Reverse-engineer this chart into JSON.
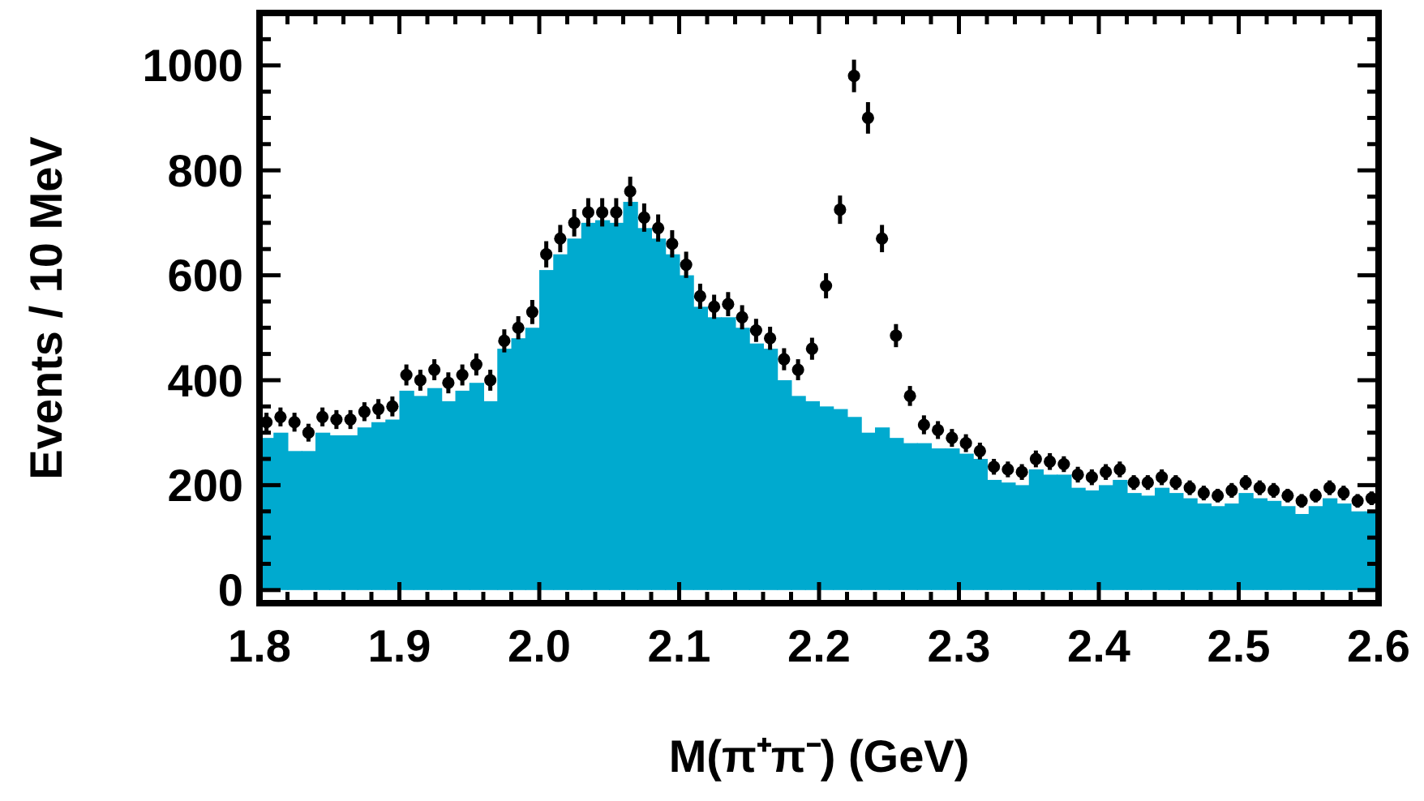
{
  "chart_data": {
    "type": "histogram",
    "xlabel": "M(π⁺π⁻) (GeV)",
    "ylabel": "Events / 10 MeV",
    "marker": "circle",
    "xlim": [
      1.8,
      2.6
    ],
    "ylim": [
      -25,
      1100
    ],
    "xticks": [
      1.8,
      {
        "value": 1.82,
        "label": null
      },
      {
        "value": 1.84,
        "label": null
      },
      {
        "value": 1.86,
        "label": null
      },
      {
        "value": 1.88,
        "label": null
      },
      1.9,
      {
        "value": 1.92,
        "label": null
      },
      {
        "value": 1.94,
        "label": null
      },
      {
        "value": 1.96,
        "label": null
      },
      {
        "value": 1.98,
        "label": null
      },
      {
        "value": 2,
        "label": "2.0"
      },
      {
        "value": 2.02,
        "label": null
      },
      {
        "value": 2.04,
        "label": null
      },
      {
        "value": 2.06,
        "label": null
      },
      {
        "value": 2.08,
        "label": null
      },
      2.1,
      {
        "value": 2.12,
        "label": null
      },
      {
        "value": 2.14,
        "label": null
      },
      {
        "value": 2.16,
        "label": null
      },
      {
        "value": 2.18,
        "label": null
      },
      2.2,
      {
        "value": 2.22,
        "label": null
      },
      {
        "value": 2.24,
        "label": null
      },
      {
        "value": 2.26,
        "label": null
      },
      {
        "value": 2.28,
        "label": null
      },
      2.3,
      {
        "value": 2.32,
        "label": null
      },
      {
        "value": 2.34,
        "label": null
      },
      {
        "value": 2.36,
        "label": null
      },
      {
        "value": 2.38,
        "label": null
      },
      2.4,
      {
        "value": 2.42,
        "label": null
      },
      {
        "value": 2.44,
        "label": null
      },
      {
        "value": 2.46,
        "label": null
      },
      {
        "value": 2.48,
        "label": null
      },
      2.5,
      {
        "value": 2.52,
        "label": null
      },
      {
        "value": 2.54,
        "label": null
      },
      {
        "value": 2.56,
        "label": null
      },
      {
        "value": 2.58,
        "label": null
      },
      2.6
    ],
    "yticks": [
      0,
      {
        "value": 50,
        "label": null
      },
      {
        "value": 100,
        "label": null
      },
      {
        "value": 150,
        "label": null
      },
      200,
      {
        "value": 250,
        "label": null
      },
      {
        "value": 300,
        "label": null
      },
      {
        "value": 350,
        "label": null
      },
      400,
      {
        "value": 450,
        "label": null
      },
      {
        "value": 500,
        "label": null
      },
      {
        "value": 550,
        "label": null
      },
      600,
      {
        "value": 650,
        "label": null
      },
      {
        "value": 700,
        "label": null
      },
      {
        "value": 750,
        "label": null
      },
      800,
      {
        "value": 850,
        "label": null
      },
      {
        "value": 900,
        "label": null
      },
      {
        "value": 950,
        "label": null
      },
      1000,
      {
        "value": 1050,
        "label": null
      }
    ],
    "bins": [
      1.8,
      1.81,
      1.82,
      1.83,
      1.84,
      1.85,
      1.86,
      1.87,
      1.88,
      1.89,
      1.9,
      1.91,
      1.92,
      1.93,
      1.94,
      1.95,
      1.96,
      1.97,
      1.98,
      1.99,
      2.0,
      2.01,
      2.02,
      2.03,
      2.04,
      2.05,
      2.06,
      2.07,
      2.08,
      2.09,
      2.1,
      2.11,
      2.12,
      2.13,
      2.14,
      2.15,
      2.16,
      2.17,
      2.18,
      2.19,
      2.2,
      2.21,
      2.22,
      2.23,
      2.24,
      2.25,
      2.26,
      2.27,
      2.28,
      2.29,
      2.3,
      2.31,
      2.32,
      2.33,
      2.34,
      2.35,
      2.36,
      2.37,
      2.38,
      2.39,
      2.4,
      2.41,
      2.42,
      2.43,
      2.44,
      2.45,
      2.46,
      2.47,
      2.48,
      2.49,
      2.5,
      2.51,
      2.52,
      2.53,
      2.54,
      2.55,
      2.56,
      2.57,
      2.58,
      2.59,
      2.6
    ],
    "series": [
      {
        "color": "#00aacf",
        "values": [
          290,
          300,
          265,
          265,
          300,
          295,
          295,
          310,
          320,
          325,
          380,
          370,
          385,
          360,
          380,
          395,
          360,
          460,
          480,
          500,
          610,
          640,
          670,
          700,
          705,
          700,
          740,
          690,
          670,
          640,
          600,
          540,
          520,
          520,
          500,
          470,
          460,
          400,
          370,
          360,
          350,
          345,
          330,
          300,
          310,
          290,
          280,
          280,
          270,
          270,
          260,
          250,
          210,
          205,
          200,
          230,
          220,
          220,
          195,
          190,
          200,
          210,
          185,
          180,
          195,
          185,
          175,
          165,
          160,
          165,
          185,
          175,
          170,
          160,
          145,
          160,
          175,
          165,
          150,
          150
        ]
      },
      {
        "type": "scatter",
        "color": "#000000",
        "x": [
          1.805,
          1.815,
          1.825,
          1.835,
          1.845,
          1.855,
          1.865,
          1.875,
          1.885,
          1.895,
          1.905,
          1.915,
          1.925,
          1.935,
          1.945,
          1.955,
          1.965,
          1.975,
          1.985,
          1.995,
          2.005,
          2.015,
          2.025,
          2.035,
          2.045,
          2.055,
          2.065,
          2.075,
          2.085,
          2.095,
          2.105,
          2.115,
          2.125,
          2.135,
          2.145,
          2.155,
          2.165,
          2.175,
          2.185,
          2.195,
          2.205,
          2.215,
          2.225,
          2.235,
          2.245,
          2.255,
          2.265,
          2.275,
          2.285,
          2.295,
          2.305,
          2.315,
          2.325,
          2.335,
          2.345,
          2.355,
          2.365,
          2.375,
          2.385,
          2.395,
          2.405,
          2.415,
          2.425,
          2.435,
          2.445,
          2.455,
          2.465,
          2.475,
          2.485,
          2.495,
          2.505,
          2.515,
          2.525,
          2.535,
          2.545,
          2.555,
          2.565,
          2.575,
          2.585,
          2.595
        ],
        "values": [
          320,
          330,
          320,
          300,
          330,
          325,
          325,
          340,
          345,
          350,
          410,
          400,
          420,
          395,
          410,
          430,
          400,
          475,
          500,
          530,
          640,
          670,
          700,
          720,
          720,
          720,
          760,
          710,
          690,
          660,
          620,
          560,
          540,
          545,
          520,
          495,
          480,
          440,
          420,
          460,
          580,
          725,
          980,
          900,
          670,
          485,
          370,
          315,
          305,
          290,
          280,
          265,
          235,
          230,
          225,
          250,
          245,
          240,
          220,
          215,
          225,
          230,
          205,
          205,
          215,
          205,
          195,
          185,
          180,
          190,
          205,
          195,
          190,
          180,
          170,
          180,
          195,
          185,
          170,
          175
        ],
        "errors": [
          18,
          18,
          18,
          17,
          18,
          18,
          18,
          18,
          19,
          19,
          20,
          20,
          20,
          20,
          20,
          21,
          20,
          22,
          22,
          23,
          25,
          26,
          26,
          27,
          27,
          27,
          28,
          27,
          26,
          26,
          25,
          24,
          23,
          23,
          23,
          22,
          22,
          21,
          20,
          21,
          24,
          27,
          31,
          30,
          26,
          22,
          19,
          18,
          17,
          17,
          17,
          16,
          15,
          15,
          15,
          16,
          16,
          15,
          15,
          15,
          15,
          15,
          14,
          14,
          15,
          14,
          14,
          14,
          13,
          14,
          14,
          14,
          14,
          13,
          13,
          13,
          14,
          14,
          13,
          13
        ]
      }
    ]
  }
}
